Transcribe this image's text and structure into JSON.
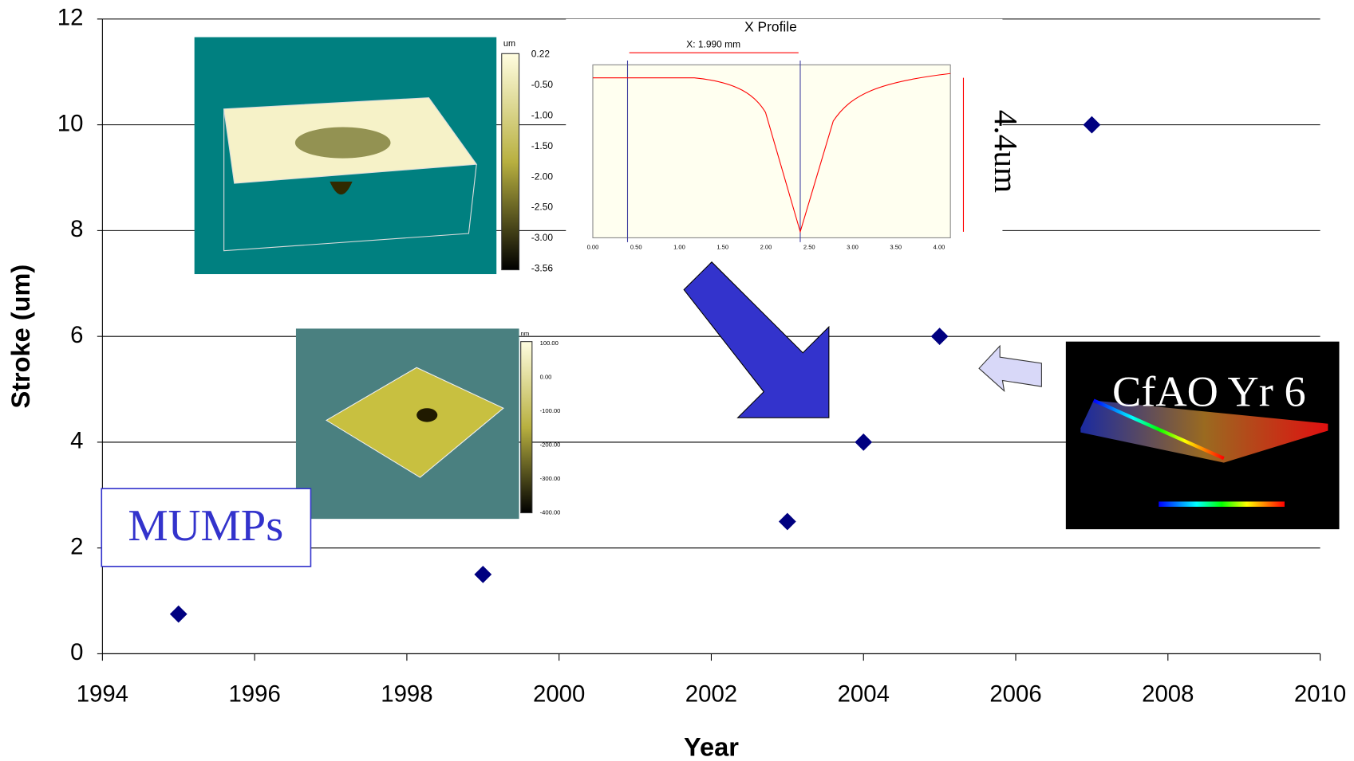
{
  "chart_data": {
    "type": "scatter",
    "x_label": "Year",
    "y_label": "Stroke (um)",
    "x": [
      1995,
      1999,
      2003,
      2004,
      2005,
      2007
    ],
    "series": [
      {
        "color": "#000080",
        "values": [
          0.75,
          1.5,
          2.5,
          4,
          6,
          10
        ]
      }
    ],
    "xlim": [
      1994,
      2010
    ],
    "xticks": [
      1994,
      1996,
      1998,
      2000,
      2002,
      2004,
      2006,
      2008,
      2010
    ],
    "ylim": [
      0,
      12
    ],
    "yticks": [
      0,
      2,
      4,
      6,
      8,
      10,
      12
    ],
    "grid": true,
    "annotations": {
      "mumps": "MUMPs",
      "cfao": "CfAO Yr 6",
      "depth": "4.4um"
    }
  },
  "insets": {
    "surface_large": {
      "unit": "um",
      "colorbar": [
        "0.22",
        "-0.50",
        "-1.00",
        "-1.50",
        "-2.00",
        "-2.50",
        "-3.00",
        "-3.56"
      ]
    },
    "surface_small": {
      "unit": "nm",
      "colorbar": [
        "100.00",
        "0.00",
        "-100.00",
        "-200.00",
        "-300.00",
        "-400.00"
      ]
    },
    "profile": {
      "title": "X Profile",
      "measure": "X: 1.990 mm",
      "x_ticks": [
        "0.00",
        "0.50",
        "1.00",
        "1.50",
        "2.00",
        "2.50",
        "3.00",
        "3.50",
        "4.00"
      ]
    }
  }
}
